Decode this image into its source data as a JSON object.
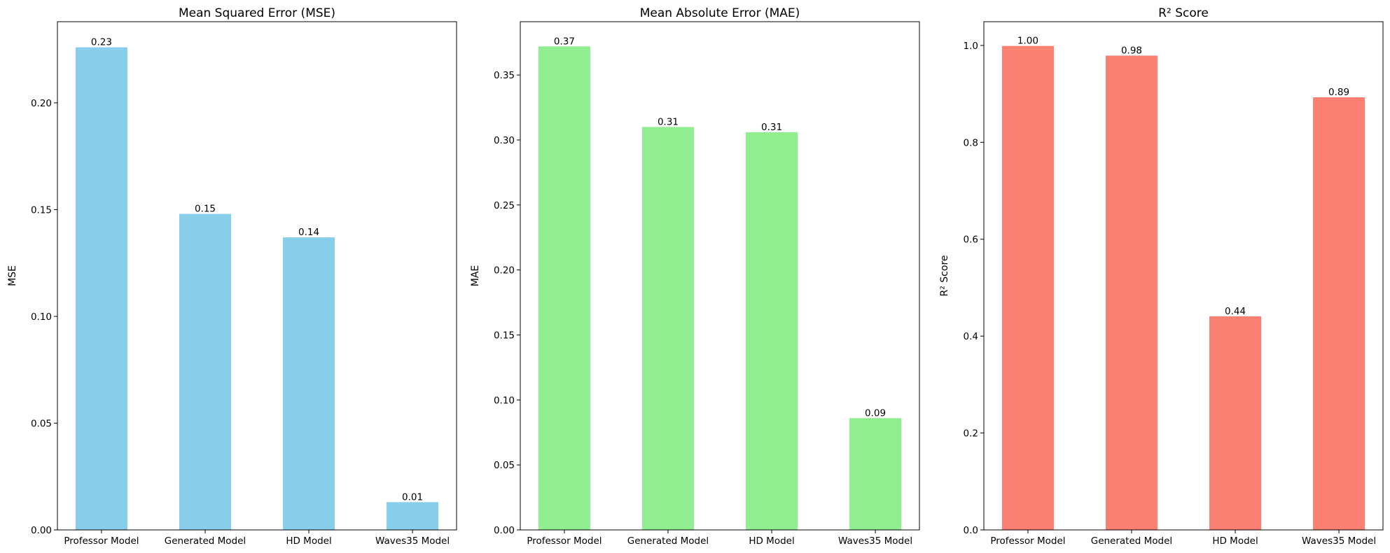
{
  "chart_data": [
    {
      "type": "bar",
      "title": "Mean Squared Error (MSE)",
      "xlabel": "",
      "ylabel": "MSE",
      "categories": [
        "Professor Model",
        "Generated Model",
        "HD Model",
        "Waves35 Model"
      ],
      "values": [
        0.226,
        0.148,
        0.137,
        0.013
      ],
      "value_labels": [
        "0.23",
        "0.15",
        "0.14",
        "0.01"
      ],
      "ylim": [
        0,
        0.238
      ],
      "yticks": [
        0.0,
        0.05,
        0.1,
        0.15,
        0.2
      ],
      "ytick_labels": [
        "0.00",
        "0.05",
        "0.10",
        "0.15",
        "0.20"
      ],
      "color": "#87CEEB",
      "grid": false,
      "legend": "none"
    },
    {
      "type": "bar",
      "title": "Mean Absolute Error (MAE)",
      "xlabel": "",
      "ylabel": "MAE",
      "categories": [
        "Professor Model",
        "Generated Model",
        "HD Model",
        "Waves35 Model"
      ],
      "values": [
        0.372,
        0.31,
        0.306,
        0.086
      ],
      "value_labels": [
        "0.37",
        "0.31",
        "0.31",
        "0.09"
      ],
      "ylim": [
        0,
        0.391
      ],
      "yticks": [
        0.0,
        0.05,
        0.1,
        0.15,
        0.2,
        0.25,
        0.3,
        0.35
      ],
      "ytick_labels": [
        "0.00",
        "0.05",
        "0.10",
        "0.15",
        "0.20",
        "0.25",
        "0.30",
        "0.35"
      ],
      "color": "#90EE90",
      "grid": false,
      "legend": "none"
    },
    {
      "type": "bar",
      "title": "R² Score",
      "xlabel": "",
      "ylabel": "R² Score",
      "categories": [
        "Professor Model",
        "Generated Model",
        "HD Model",
        "Waves35 Model"
      ],
      "values": [
        0.999,
        0.979,
        0.441,
        0.893
      ],
      "value_labels": [
        "1.00",
        "0.98",
        "0.44",
        "0.89"
      ],
      "ylim": [
        0,
        1.049
      ],
      "yticks": [
        0.0,
        0.2,
        0.4,
        0.6,
        0.8,
        1.0
      ],
      "ytick_labels": [
        "0.0",
        "0.2",
        "0.4",
        "0.6",
        "0.8",
        "1.0"
      ],
      "color": "#FA8072",
      "grid": false,
      "legend": "none"
    }
  ]
}
